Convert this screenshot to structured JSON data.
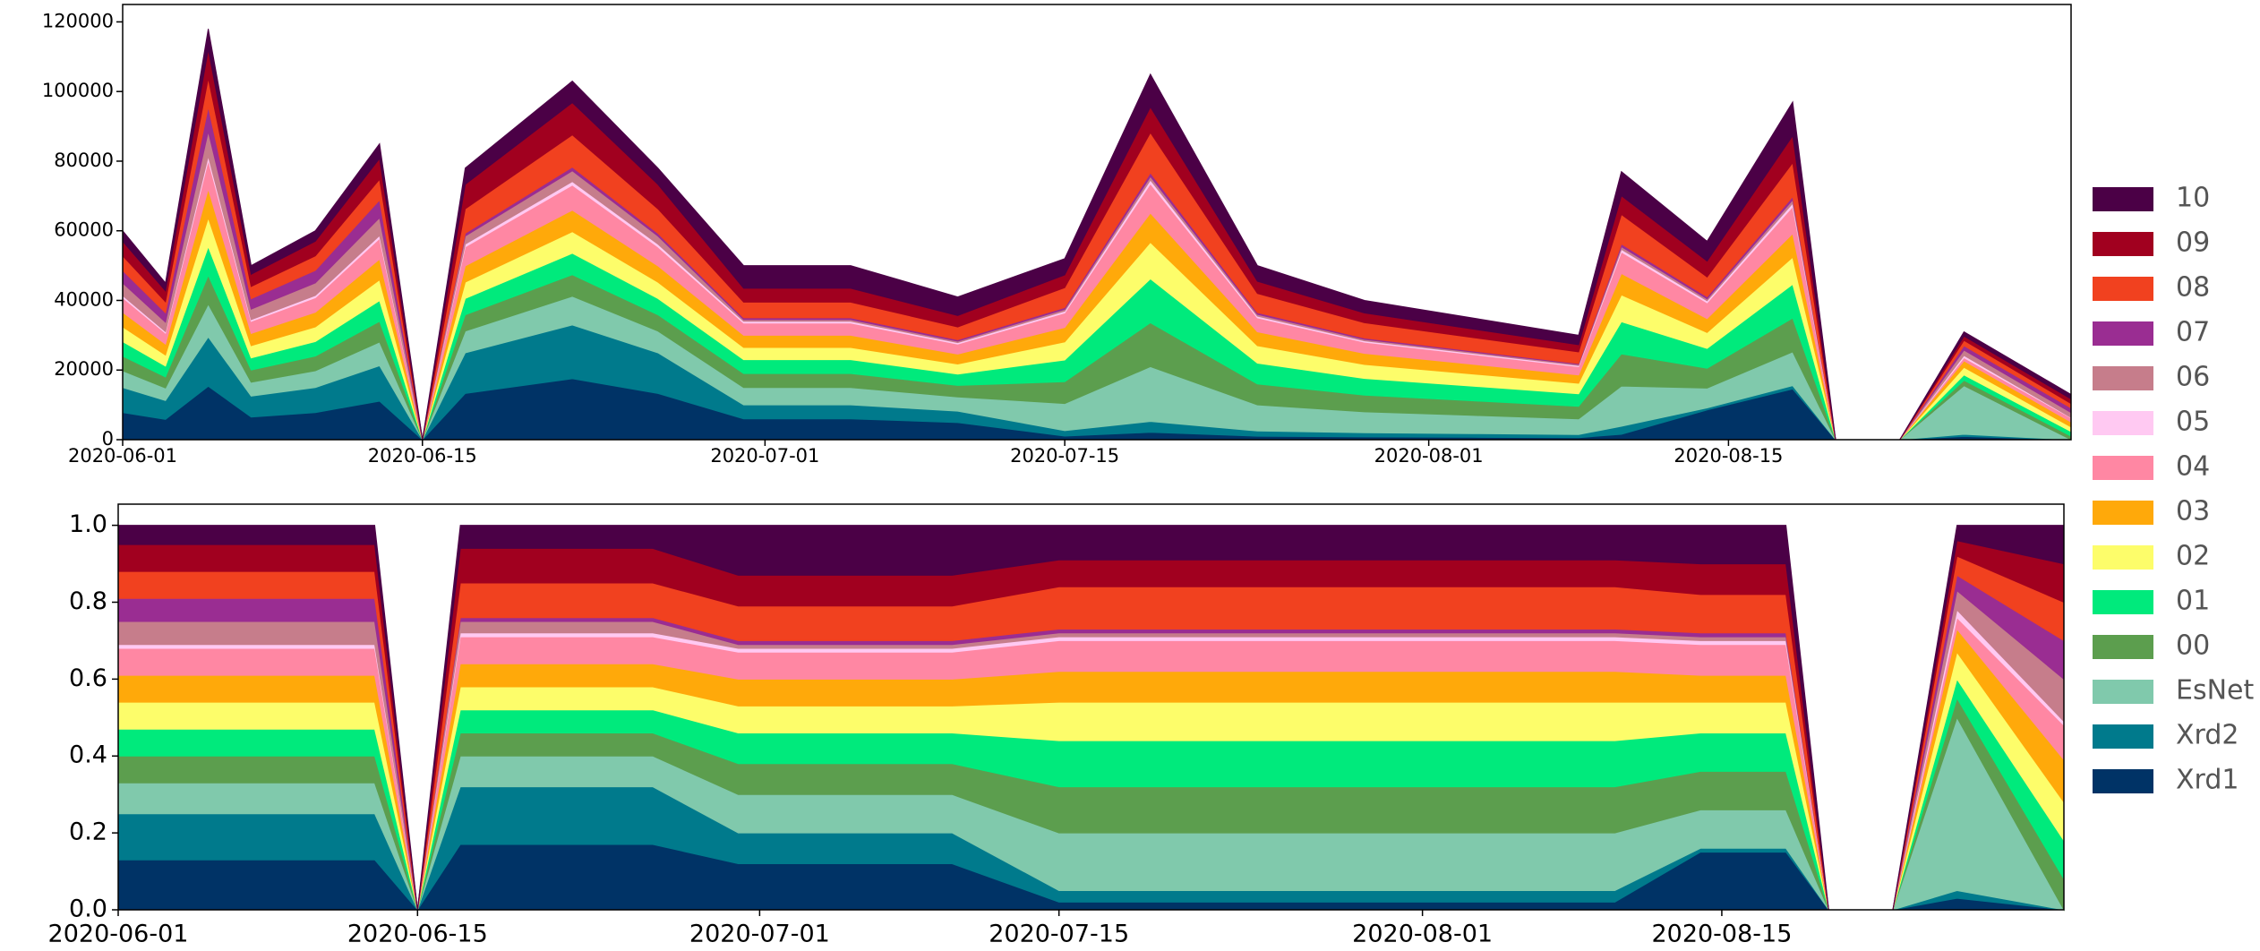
{
  "chart_data": [
    {
      "type": "area",
      "stacked": true,
      "legend": "right",
      "x": [
        "2020-06-01",
        "2020-06-03",
        "2020-06-05",
        "2020-06-07",
        "2020-06-10",
        "2020-06-13",
        "2020-06-15",
        "2020-06-17",
        "2020-06-22",
        "2020-06-26",
        "2020-06-30",
        "2020-07-05",
        "2020-07-10",
        "2020-07-15",
        "2020-07-19",
        "2020-07-24",
        "2020-07-29",
        "2020-08-03",
        "2020-08-08",
        "2020-08-10",
        "2020-08-14",
        "2020-08-18",
        "2020-08-20",
        "2020-08-23",
        "2020-08-26",
        "2020-08-31"
      ],
      "xlim": [
        "2020-06-01",
        "2020-08-31"
      ],
      "xticks": [
        "2020-06-01",
        "2020-06-15",
        "2020-07-01",
        "2020-07-15",
        "2020-08-01",
        "2020-08-15"
      ],
      "ylim": [
        0,
        125000
      ],
      "yticks": [
        0,
        20000,
        40000,
        60000,
        80000,
        100000,
        120000
      ],
      "series": [
        {
          "name": "Xrd1",
          "color": "#003366",
          "values": [
            7800,
            5850,
            15340,
            6500,
            7800,
            11050,
            0,
            13260,
            17510,
            13260,
            6000,
            6000,
            4920,
            1040,
            2100,
            1000,
            800,
            700,
            600,
            1540,
            8550,
            14550,
            0,
            0,
            930,
            0
          ]
        },
        {
          "name": "Xrd2",
          "color": "#007a8c",
          "values": [
            7200,
            5400,
            14160,
            6000,
            7200,
            10200,
            0,
            11700,
            15450,
            11700,
            4000,
            4000,
            3280,
            1560,
            3150,
            1500,
            1200,
            1050,
            900,
            2310,
            570,
            970,
            0,
            0,
            620,
            0
          ]
        },
        {
          "name": "EsNet",
          "color": "#80c9ac",
          "values": [
            4800,
            3600,
            9440,
            4000,
            4800,
            6800,
            0,
            6240,
            8240,
            6240,
            5000,
            5000,
            4100,
            7800,
            15750,
            7500,
            6000,
            5250,
            4500,
            11550,
            5700,
            9700,
            0,
            0,
            13950,
            0
          ]
        },
        {
          "name": "00",
          "color": "#5c9e4e",
          "values": [
            4200,
            3150,
            8260,
            3500,
            4200,
            5950,
            0,
            4680,
            6180,
            4680,
            4000,
            4000,
            3280,
            6240,
            12600,
            6000,
            4800,
            4200,
            3600,
            9240,
            5700,
            9700,
            0,
            0,
            1550,
            1040
          ]
        },
        {
          "name": "01",
          "color": "#00ea7c",
          "values": [
            4200,
            3150,
            8260,
            3500,
            4200,
            5950,
            0,
            4680,
            6180,
            4680,
            4000,
            4000,
            3280,
            6240,
            12600,
            6000,
            4800,
            4200,
            3600,
            9240,
            5700,
            9700,
            0,
            0,
            1550,
            1300
          ]
        },
        {
          "name": "02",
          "color": "#fdfd6a",
          "values": [
            4200,
            3150,
            8260,
            3500,
            4200,
            5950,
            0,
            4680,
            6180,
            4680,
            3500,
            3500,
            2870,
            5200,
            10500,
            5000,
            4000,
            3500,
            3000,
            7700,
            4560,
            7760,
            0,
            0,
            2170,
            1300
          ]
        },
        {
          "name": "03",
          "color": "#ffa90a",
          "values": [
            4200,
            3150,
            8260,
            3500,
            4200,
            5950,
            0,
            4680,
            6180,
            4680,
            3500,
            3500,
            2870,
            4160,
            8400,
            4000,
            3200,
            2800,
            2400,
            6160,
            3990,
            6790,
            0,
            0,
            1860,
            1430
          ]
        },
        {
          "name": "04",
          "color": "#ff87a3",
          "values": [
            4200,
            3150,
            8260,
            3500,
            4200,
            5950,
            0,
            5460,
            7210,
            5460,
            3500,
            3500,
            2870,
            4160,
            8400,
            4000,
            3200,
            2800,
            2400,
            6160,
            4560,
            7760,
            0,
            0,
            930,
            1170
          ]
        },
        {
          "name": "05",
          "color": "#ffc9f2",
          "values": [
            600,
            450,
            1180,
            500,
            600,
            850,
            0,
            780,
            1030,
            780,
            500,
            500,
            410,
            520,
            1050,
            500,
            400,
            350,
            300,
            770,
            570,
            970,
            0,
            0,
            620,
            130
          ]
        },
        {
          "name": "06",
          "color": "#c67d8b",
          "values": [
            3600,
            2700,
            7080,
            3000,
            3600,
            5100,
            0,
            2340,
            3090,
            2340,
            500,
            500,
            410,
            520,
            1050,
            500,
            400,
            350,
            300,
            770,
            570,
            970,
            0,
            0,
            1550,
            1430
          ]
        },
        {
          "name": "07",
          "color": "#9a2d92",
          "values": [
            3600,
            2700,
            7080,
            3000,
            3600,
            5100,
            0,
            780,
            1030,
            780,
            500,
            500,
            410,
            520,
            1050,
            500,
            400,
            350,
            300,
            770,
            570,
            970,
            0,
            0,
            1240,
            1300
          ]
        },
        {
          "name": "08",
          "color": "#f1411f",
          "values": [
            4200,
            3150,
            8260,
            3500,
            4200,
            5950,
            0,
            7020,
            9270,
            7020,
            4500,
            4500,
            3690,
            5720,
            11550,
            5500,
            4400,
            3850,
            3300,
            8470,
            5700,
            9700,
            0,
            0,
            1550,
            1300
          ]
        },
        {
          "name": "09",
          "color": "#a1001f",
          "values": [
            4200,
            3150,
            8260,
            3500,
            4200,
            5950,
            0,
            7020,
            9270,
            7020,
            4000,
            4000,
            3280,
            3640,
            7350,
            3500,
            2800,
            2450,
            2100,
            5390,
            4560,
            7760,
            0,
            0,
            1240,
            1300
          ]
        },
        {
          "name": "10",
          "color": "#4b0046",
          "values": [
            3000,
            2250,
            5900,
            2500,
            3000,
            4250,
            0,
            4680,
            6180,
            4680,
            6500,
            6500,
            5330,
            4680,
            9450,
            4500,
            3600,
            3150,
            2700,
            6930,
            5700,
            9700,
            0,
            0,
            1240,
            1300
          ]
        }
      ]
    },
    {
      "type": "area",
      "stacked": true,
      "x": [
        "2020-06-01",
        "2020-06-03",
        "2020-06-05",
        "2020-06-07",
        "2020-06-10",
        "2020-06-13",
        "2020-06-15",
        "2020-06-17",
        "2020-06-22",
        "2020-06-26",
        "2020-06-30",
        "2020-07-05",
        "2020-07-10",
        "2020-07-15",
        "2020-07-19",
        "2020-07-24",
        "2020-07-29",
        "2020-08-03",
        "2020-08-08",
        "2020-08-10",
        "2020-08-14",
        "2020-08-18",
        "2020-08-20",
        "2020-08-23",
        "2020-08-26",
        "2020-08-31"
      ],
      "xlim": [
        "2020-06-01",
        "2020-08-31"
      ],
      "xticks": [
        "2020-06-01",
        "2020-06-15",
        "2020-07-01",
        "2020-07-15",
        "2020-08-01",
        "2020-08-15"
      ],
      "ylim": [
        0,
        1.055
      ],
      "yticks": [
        {
          "value": 0,
          "label": "0.0"
        },
        0.2,
        0.4,
        0.6,
        0.8,
        {
          "value": 1,
          "label": "1.0"
        }
      ],
      "series": [
        {
          "values": [
            0.13,
            0.13,
            0.13,
            0.13,
            0.13,
            0.13,
            0,
            0.17,
            0.17,
            0.17,
            0.12,
            0.12,
            0.12,
            0.02,
            0.02,
            0.02,
            0.02,
            0.02,
            0.02,
            0.02,
            0.15,
            0.15,
            0,
            0,
            0.03,
            0
          ]
        },
        {
          "values": [
            0.12,
            0.12,
            0.12,
            0.12,
            0.12,
            0.12,
            0,
            0.15,
            0.15,
            0.15,
            0.08,
            0.08,
            0.08,
            0.03,
            0.03,
            0.03,
            0.03,
            0.03,
            0.03,
            0.03,
            0.01,
            0.01,
            0,
            0,
            0.02,
            0
          ]
        },
        {
          "values": [
            0.08,
            0.08,
            0.08,
            0.08,
            0.08,
            0.08,
            0,
            0.08,
            0.08,
            0.08,
            0.1,
            0.1,
            0.1,
            0.15,
            0.15,
            0.15,
            0.15,
            0.15,
            0.15,
            0.15,
            0.1,
            0.1,
            0,
            0,
            0.45,
            0
          ]
        },
        {
          "values": [
            0.07,
            0.07,
            0.07,
            0.07,
            0.07,
            0.07,
            0,
            0.06,
            0.06,
            0.06,
            0.08,
            0.08,
            0.08,
            0.12,
            0.12,
            0.12,
            0.12,
            0.12,
            0.12,
            0.12,
            0.1,
            0.1,
            0,
            0,
            0.05,
            0.08
          ]
        },
        {
          "values": [
            0.07,
            0.07,
            0.07,
            0.07,
            0.07,
            0.07,
            0,
            0.06,
            0.06,
            0.06,
            0.08,
            0.08,
            0.08,
            0.12,
            0.12,
            0.12,
            0.12,
            0.12,
            0.12,
            0.12,
            0.1,
            0.1,
            0,
            0,
            0.05,
            0.1
          ]
        },
        {
          "values": [
            0.07,
            0.07,
            0.07,
            0.07,
            0.07,
            0.07,
            0,
            0.06,
            0.06,
            0.06,
            0.07,
            0.07,
            0.07,
            0.1,
            0.1,
            0.1,
            0.1,
            0.1,
            0.1,
            0.1,
            0.08,
            0.08,
            0,
            0,
            0.07,
            0.1
          ]
        },
        {
          "values": [
            0.07,
            0.07,
            0.07,
            0.07,
            0.07,
            0.07,
            0,
            0.06,
            0.06,
            0.06,
            0.07,
            0.07,
            0.07,
            0.08,
            0.08,
            0.08,
            0.08,
            0.08,
            0.08,
            0.08,
            0.07,
            0.07,
            0,
            0,
            0.06,
            0.11
          ]
        },
        {
          "values": [
            0.07,
            0.07,
            0.07,
            0.07,
            0.07,
            0.07,
            0,
            0.07,
            0.07,
            0.07,
            0.07,
            0.07,
            0.07,
            0.08,
            0.08,
            0.08,
            0.08,
            0.08,
            0.08,
            0.08,
            0.08,
            0.08,
            0,
            0,
            0.03,
            0.09
          ]
        },
        {
          "values": [
            0.01,
            0.01,
            0.01,
            0.01,
            0.01,
            0.01,
            0,
            0.01,
            0.01,
            0.01,
            0.01,
            0.01,
            0.01,
            0.01,
            0.01,
            0.01,
            0.01,
            0.01,
            0.01,
            0.01,
            0.01,
            0.01,
            0,
            0,
            0.02,
            0.01
          ]
        },
        {
          "values": [
            0.06,
            0.06,
            0.06,
            0.06,
            0.06,
            0.06,
            0,
            0.03,
            0.03,
            0.03,
            0.01,
            0.01,
            0.01,
            0.01,
            0.01,
            0.01,
            0.01,
            0.01,
            0.01,
            0.01,
            0.01,
            0.01,
            0,
            0,
            0.05,
            0.11
          ]
        },
        {
          "values": [
            0.06,
            0.06,
            0.06,
            0.06,
            0.06,
            0.06,
            0,
            0.01,
            0.01,
            0.01,
            0.01,
            0.01,
            0.01,
            0.01,
            0.01,
            0.01,
            0.01,
            0.01,
            0.01,
            0.01,
            0.01,
            0.01,
            0,
            0,
            0.04,
            0.1
          ]
        },
        {
          "values": [
            0.07,
            0.07,
            0.07,
            0.07,
            0.07,
            0.07,
            0,
            0.09,
            0.09,
            0.09,
            0.09,
            0.09,
            0.09,
            0.11,
            0.11,
            0.11,
            0.11,
            0.11,
            0.11,
            0.11,
            0.1,
            0.1,
            0,
            0,
            0.05,
            0.1
          ]
        },
        {
          "values": [
            0.07,
            0.07,
            0.07,
            0.07,
            0.07,
            0.07,
            0,
            0.09,
            0.09,
            0.09,
            0.08,
            0.08,
            0.08,
            0.07,
            0.07,
            0.07,
            0.07,
            0.07,
            0.07,
            0.07,
            0.08,
            0.08,
            0,
            0,
            0.04,
            0.1
          ]
        },
        {
          "values": [
            0.05,
            0.05,
            0.05,
            0.05,
            0.05,
            0.05,
            0,
            0.06,
            0.06,
            0.06,
            0.13,
            0.13,
            0.13,
            0.09,
            0.09,
            0.09,
            0.09,
            0.09,
            0.09,
            0.09,
            0.1,
            0.1,
            0,
            0,
            0.04,
            0.1
          ]
        }
      ]
    }
  ]
}
